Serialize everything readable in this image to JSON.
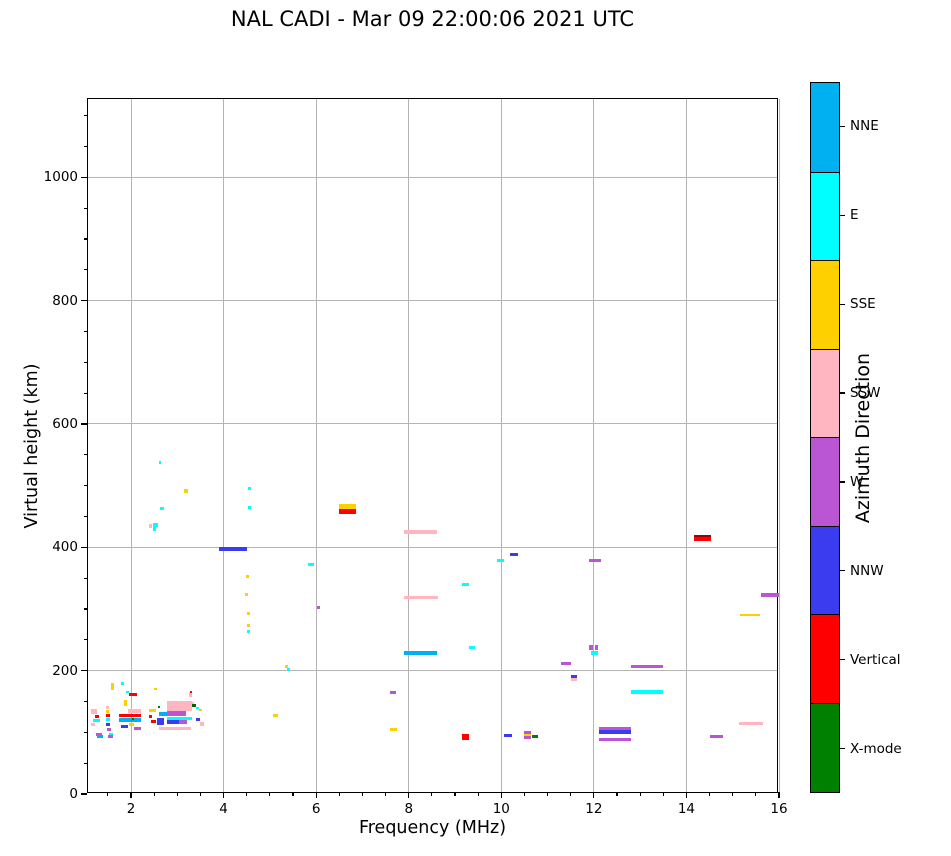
{
  "chart_data": {
    "type": "scatter",
    "title": "NAL CADI - Mar 09 22:00:06 2021 UTC",
    "xlabel": "Frequency (MHz)",
    "ylabel": "Virtual height (km)",
    "xlim": [
      1.07,
      16
    ],
    "ylim": [
      0,
      1127
    ],
    "xticks": [
      2,
      4,
      6,
      8,
      10,
      12,
      14,
      16
    ],
    "yticks": [
      0,
      200,
      400,
      600,
      800,
      1000
    ],
    "x_minor_step": 0.5,
    "y_minor_step": 50,
    "grid": true,
    "grid_color": "#b4b4b4",
    "colors": {
      "sky": "#00b0f0",
      "cyan": "#00ffff",
      "gold": "#ffd000",
      "pink": "#ffb6c1",
      "orchid": "#ba55d3",
      "blue": "#3b3bef",
      "red": "#ff0000",
      "green": "#008000",
      "darkred": "#a00000",
      "darkgreen": "#006400"
    },
    "colorbar": {
      "title": "Azimuth Direction",
      "segments": [
        {
          "label": "NNE",
          "color": "#00b0f0"
        },
        {
          "label": "E",
          "color": "#00ffff"
        },
        {
          "label": "SSE",
          "color": "#ffd000"
        },
        {
          "label": "SSW",
          "color": "#ffb6c1"
        },
        {
          "label": "W",
          "color": "#ba55d3"
        },
        {
          "label": "NNW",
          "color": "#3b3bef"
        },
        {
          "label": "Vertical",
          "color": "#ff0000"
        },
        {
          "label": "X-mode",
          "color": "#008000"
        }
      ]
    },
    "points_format": [
      "freq_start_MHz",
      "freq_end_MHz",
      "virtual_height_km",
      "thickness_px",
      "azimuth_color"
    ],
    "points": [
      [
        1.89,
        1.96,
        165,
        2,
        "cyan"
      ],
      [
        1.96,
        2.13,
        162,
        3,
        "red"
      ],
      [
        1.85,
        1.91,
        147,
        6,
        "gold"
      ],
      [
        1.13,
        1.26,
        134,
        5,
        "pink"
      ],
      [
        1.22,
        1.31,
        125,
        3,
        "red"
      ],
      [
        1.18,
        1.33,
        119,
        3,
        "cyan"
      ],
      [
        1.13,
        1.22,
        113,
        3,
        "pink"
      ],
      [
        1.46,
        1.52,
        140,
        3,
        "pink"
      ],
      [
        1.46,
        1.52,
        133,
        3,
        "gold"
      ],
      [
        1.46,
        1.55,
        128,
        3,
        "red"
      ],
      [
        1.46,
        1.55,
        120,
        3,
        "cyan"
      ],
      [
        1.46,
        1.55,
        113,
        3,
        "blue"
      ],
      [
        1.48,
        1.57,
        104,
        3,
        "orchid"
      ],
      [
        1.74,
        2.22,
        127,
        3,
        "red"
      ],
      [
        1.74,
        2.22,
        120,
        4,
        "sky"
      ],
      [
        1.93,
        2.22,
        135,
        4,
        "pink"
      ],
      [
        1.96,
        2.06,
        113,
        3,
        "gold"
      ],
      [
        1.78,
        1.93,
        109,
        3,
        "blue"
      ],
      [
        2.06,
        2.22,
        106,
        3,
        "orchid"
      ],
      [
        2.02,
        2.06,
        121,
        2,
        "green"
      ],
      [
        1.52,
        1.61,
        97,
        3,
        "cyan"
      ],
      [
        1.5,
        1.61,
        93,
        3,
        "orchid"
      ],
      [
        1.24,
        1.37,
        97,
        3,
        "orchid"
      ],
      [
        1.26,
        1.39,
        93,
        3,
        "sky"
      ],
      [
        1.57,
        1.63,
        175,
        7,
        "gold"
      ],
      [
        1.78,
        1.85,
        179,
        3,
        "cyan"
      ],
      [
        2.78,
        3.32,
        143,
        10,
        "pink"
      ],
      [
        2.78,
        3.19,
        131,
        5,
        "orchid"
      ],
      [
        2.78,
        3.32,
        122,
        3,
        "cyan"
      ],
      [
        2.78,
        3.04,
        116,
        4,
        "blue"
      ],
      [
        3.04,
        3.21,
        116,
        4,
        "orchid"
      ],
      [
        2.6,
        3.3,
        106,
        3,
        "pink"
      ],
      [
        2.58,
        2.62,
        141,
        2,
        "green"
      ],
      [
        2.39,
        2.54,
        135,
        3,
        "gold"
      ],
      [
        2.39,
        2.45,
        125,
        3,
        "red"
      ],
      [
        2.43,
        2.54,
        118,
        3,
        "red"
      ],
      [
        2.56,
        2.71,
        117,
        7,
        "blue"
      ],
      [
        2.6,
        2.78,
        129,
        4,
        "sky"
      ],
      [
        2.5,
        2.56,
        170,
        2,
        "gold"
      ],
      [
        3.25,
        3.32,
        161,
        4,
        "pink"
      ],
      [
        3.27,
        3.32,
        166,
        2,
        "red"
      ],
      [
        3.3,
        3.36,
        147,
        3,
        "pink"
      ],
      [
        3.32,
        3.4,
        144,
        3,
        "darkgreen"
      ],
      [
        3.4,
        3.47,
        140,
        2,
        "cyan"
      ],
      [
        3.47,
        3.53,
        136,
        2,
        "gold"
      ],
      [
        3.4,
        3.49,
        120,
        3,
        "blue"
      ],
      [
        3.49,
        3.58,
        113,
        4,
        "pink"
      ],
      [
        2.63,
        2.71,
        463,
        3,
        "cyan"
      ],
      [
        2.39,
        2.45,
        435,
        4,
        "pink"
      ],
      [
        2.47,
        2.58,
        437,
        4,
        "cyan"
      ],
      [
        2.47,
        2.54,
        429,
        4,
        "cyan"
      ],
      [
        2.6,
        2.65,
        538,
        3,
        "cyan"
      ],
      [
        3.14,
        3.23,
        491,
        4,
        "gold"
      ],
      [
        3.9,
        4.51,
        398,
        4,
        "blue"
      ],
      [
        4.53,
        4.6,
        496,
        3,
        "cyan"
      ],
      [
        4.53,
        4.6,
        465,
        3,
        "cyan"
      ],
      [
        4.48,
        4.55,
        352,
        3,
        "gold"
      ],
      [
        4.46,
        4.53,
        323,
        3,
        "gold"
      ],
      [
        4.5,
        4.57,
        292,
        3,
        "gold"
      ],
      [
        4.5,
        4.57,
        274,
        3,
        "gold"
      ],
      [
        4.5,
        4.57,
        264,
        3,
        "cyan"
      ],
      [
        6.49,
        6.86,
        466,
        6,
        "gold"
      ],
      [
        6.49,
        6.86,
        458,
        5,
        "red"
      ],
      [
        5.82,
        5.95,
        372,
        3,
        "cyan"
      ],
      [
        6.02,
        6.08,
        302,
        3,
        "orchid"
      ],
      [
        5.33,
        5.4,
        206,
        3,
        "gold"
      ],
      [
        5.36,
        5.43,
        202,
        3,
        "cyan"
      ],
      [
        5.07,
        5.18,
        127,
        3,
        "gold"
      ],
      [
        7.6,
        7.73,
        165,
        3,
        "orchid"
      ],
      [
        7.6,
        7.75,
        105,
        3,
        "gold"
      ],
      [
        7.9,
        8.61,
        425,
        4,
        "pink"
      ],
      [
        7.9,
        8.63,
        318,
        3,
        "pink"
      ],
      [
        7.9,
        8.61,
        228,
        4,
        "sky"
      ],
      [
        9.15,
        9.3,
        340,
        3,
        "cyan"
      ],
      [
        9.3,
        9.43,
        238,
        3,
        "cyan"
      ],
      [
        9.15,
        9.3,
        92,
        6,
        "red"
      ],
      [
        10.06,
        10.23,
        95,
        3,
        "blue"
      ],
      [
        10.49,
        10.64,
        99,
        3,
        "orchid"
      ],
      [
        10.49,
        10.64,
        95,
        3,
        "gold"
      ],
      [
        10.49,
        10.64,
        91,
        3,
        "orchid"
      ],
      [
        10.66,
        10.79,
        94,
        3,
        "green"
      ],
      [
        10.19,
        10.36,
        388,
        3,
        "blue"
      ],
      [
        9.91,
        10.06,
        378,
        3,
        "cyan"
      ],
      [
        11.89,
        12.15,
        378,
        3,
        "orchid"
      ],
      [
        11.89,
        11.98,
        238,
        5,
        "orchid"
      ],
      [
        12.02,
        12.1,
        238,
        5,
        "orchid"
      ],
      [
        11.93,
        12.1,
        228,
        4,
        "cyan"
      ],
      [
        11.29,
        11.51,
        211,
        3,
        "orchid"
      ],
      [
        11.5,
        11.63,
        191,
        3,
        "blue"
      ],
      [
        11.5,
        11.63,
        186,
        3,
        "pink"
      ],
      [
        12.8,
        13.49,
        206,
        3,
        "orchid"
      ],
      [
        12.8,
        13.49,
        166,
        4,
        "cyan"
      ],
      [
        12.11,
        12.8,
        105,
        4,
        "orchid"
      ],
      [
        12.11,
        12.8,
        100,
        4,
        "blue"
      ],
      [
        12.11,
        12.8,
        89,
        3,
        "orchid"
      ],
      [
        14.16,
        14.53,
        418,
        2,
        "darkred"
      ],
      [
        14.16,
        14.53,
        414,
        4,
        "red"
      ],
      [
        15.61,
        15.99,
        323,
        4,
        "orchid"
      ],
      [
        15.15,
        15.6,
        290,
        2,
        "gold"
      ],
      [
        15.13,
        15.65,
        114,
        3,
        "pink"
      ],
      [
        14.51,
        14.79,
        93,
        3,
        "orchid"
      ]
    ]
  }
}
